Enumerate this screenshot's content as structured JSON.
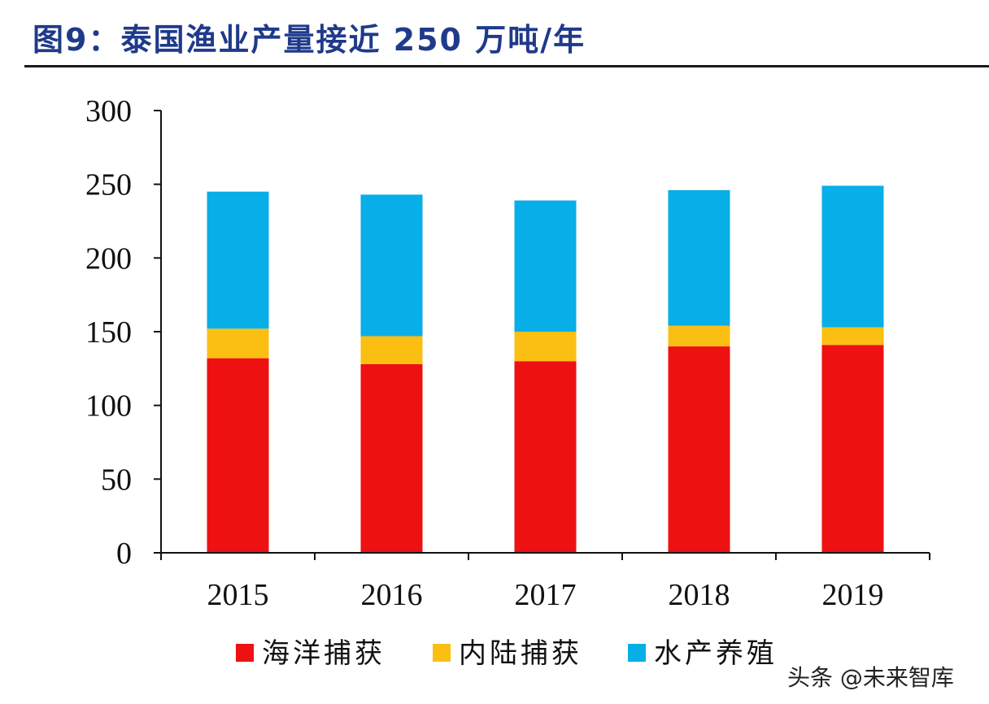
{
  "chart_data": {
    "type": "bar",
    "stacked": true,
    "title": "图9：泰国渔业产量接近 250 万吨/年",
    "categories": [
      "2015",
      "2016",
      "2017",
      "2018",
      "2019"
    ],
    "series": [
      {
        "name": "海洋捕获",
        "color": "#ee1111",
        "values": [
          132,
          128,
          130,
          140,
          141
        ]
      },
      {
        "name": "内陆捕获",
        "color": "#fbbf13",
        "values": [
          20,
          19,
          20,
          14,
          12
        ]
      },
      {
        "name": "水产养殖",
        "color": "#08aee8",
        "values": [
          93,
          96,
          89,
          92,
          96
        ]
      }
    ],
    "y_ticks": [
      "0",
      "50",
      "100",
      "150",
      "200",
      "250",
      "300"
    ],
    "ylim": [
      0,
      300
    ],
    "grid": false,
    "legend_position": "bottom"
  },
  "watermark": "头条 @未来智库"
}
